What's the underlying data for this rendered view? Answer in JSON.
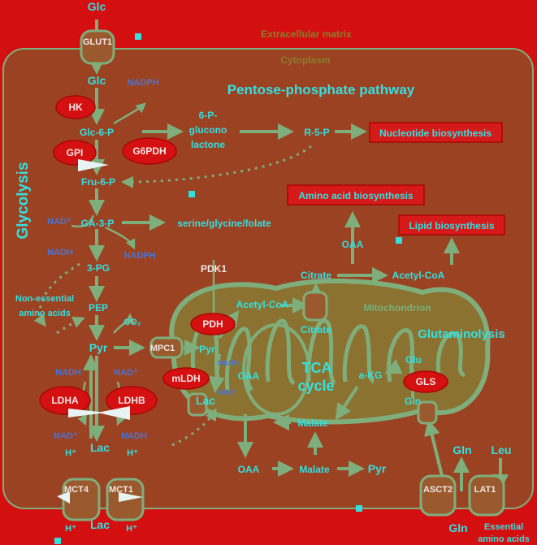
{
  "compartments": {
    "extracellular": "Extracellular matrix",
    "cytoplasm": "Cytoplasm",
    "mitochondrion": "Mitochondrion"
  },
  "pathways": {
    "glycolysis": "Glycolysis",
    "ppp": "Pentose-phosphate pathway",
    "tca_line1": "TCA",
    "tca_line2": "cycle",
    "glutaminolysis": "Glutaminolysis"
  },
  "transporters": {
    "glut1": "GLUT1",
    "mpc1": "MPC1",
    "mct4": "MCT4",
    "mct1": "MCT1",
    "asct2": "ASCT2",
    "lat1": "LAT1"
  },
  "enzymes": {
    "hk": "HK",
    "gpi": "GPI",
    "g6pdh": "G6PDH",
    "pdh": "PDH",
    "pdk1": "PDK1",
    "mldh": "mLDH",
    "ldha": "LDHA",
    "ldhb": "LDHB",
    "gls": "GLS"
  },
  "metabolites": {
    "glc_out": "Glc",
    "glc_in": "Glc",
    "glc6p": "Glc-6-P",
    "pgl_1": "6-P-",
    "pgl_2": "glucono",
    "pgl_3": "lactone",
    "r5p": "R-5-P",
    "fru6p": "Fru-6-P",
    "ga3p": "GA-3-P",
    "pg3": "3-PG",
    "pep": "PEP",
    "pyr": "Pyr",
    "pyr_mito": "Pyr",
    "lac_cyto": "Lac",
    "lac_out": "Lac",
    "lac_mito": "Lac",
    "acetylcoa_mito": "Acetyl-CoA",
    "acetylcoa_cyto": "Acetyl-CoA",
    "citrate_cyto": "Citrate",
    "citrate_mito": "Citrate",
    "oaa_cyto": "OAA",
    "oaa_mito": "OAA",
    "oaa_bottom": "OAA",
    "malate_mito": "Malate",
    "malate_bottom": "Malate",
    "pyr_bottom": "Pyr",
    "akg": "a-KG",
    "glu": "Glu",
    "gln_mito": "Gln",
    "gln_cyto": "Gln",
    "gln_out": "Gln",
    "leu": "Leu",
    "serine": "serine/glycine/folate",
    "nonessential_1": "Non-essential",
    "nonessential_2": "amino acids",
    "essential_1": "Essential",
    "essential_2": "amino acids"
  },
  "cofactors": {
    "nadph_1": "NADPH",
    "nadph_2": "NADPH",
    "nadp": "NAD⁺",
    "nadh_1": "NADH",
    "nadh_2": "NADH",
    "nad_2": "NAD⁺",
    "nad_3": "NAD⁺",
    "nadh_3": "NADH",
    "nadh_mito": "NADH",
    "nad_mito": "NAD⁺",
    "co2": "CO₂",
    "h_1": "H⁺",
    "h_2": "H⁺",
    "h_3": "H⁺",
    "h_4": "H⁺"
  },
  "outputs": {
    "nucleotide": "Nucleotide biosynthesis",
    "aminoacid": "Amino acid biosynthesis",
    "lipid": "Lipid biosynthesis"
  }
}
